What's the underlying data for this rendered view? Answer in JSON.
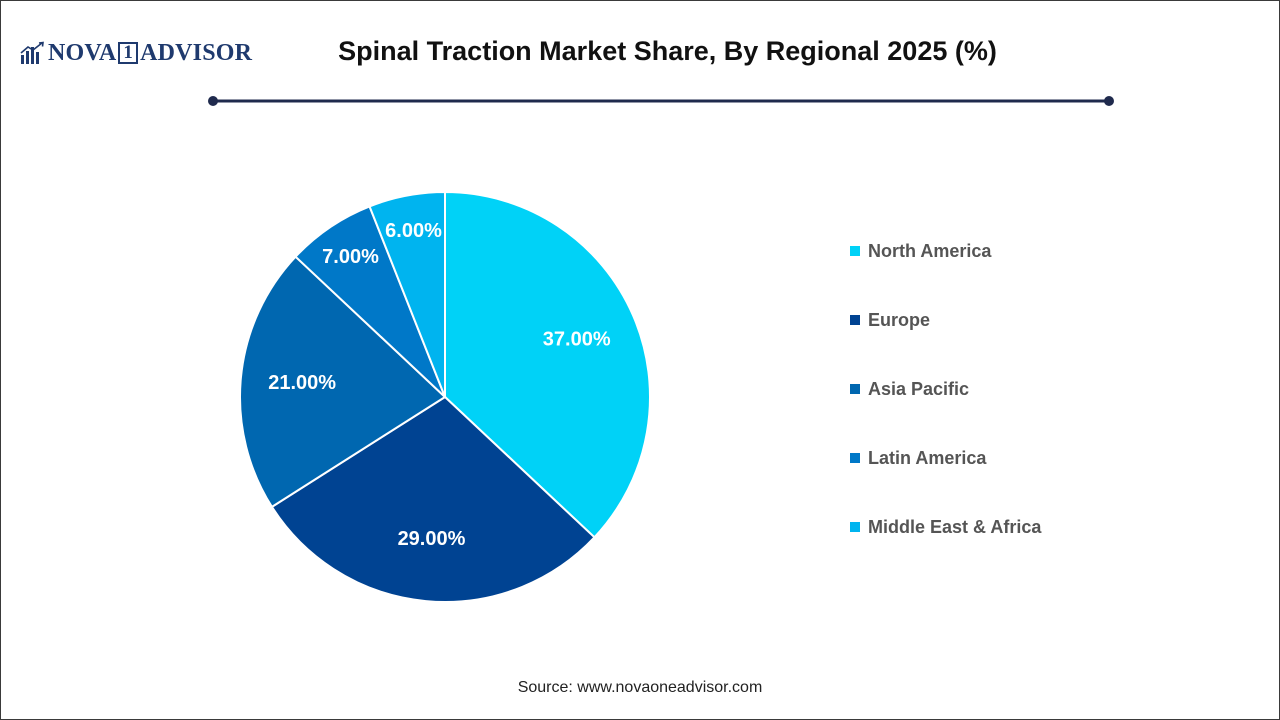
{
  "logo": {
    "part1": "NOVA",
    "box": "1",
    "part2": "ADVISOR",
    "icon": "bar-chart-logo-icon"
  },
  "title": "Spinal Traction Market Share, By Regional 2025 (%)",
  "source": "Source: www.novaoneadvisor.com",
  "colors": {
    "rule": "#1f2a4d",
    "text": "#111111",
    "legend_text": "#555555"
  },
  "chart_data": {
    "type": "pie",
    "title": "Spinal Traction Market Share, By Regional 2025 (%)",
    "categories": [
      "North America",
      "Europe",
      "Asia Pacific",
      "Latin America",
      "Middle East & Africa"
    ],
    "values": [
      37,
      29,
      21,
      7,
      6
    ],
    "labels": [
      "37.00%",
      "29.00%",
      "21.00%",
      "7.00%",
      "6.00%"
    ],
    "colors": [
      "#00d2f7",
      "#004392",
      "#0067b0",
      "#0078c8",
      "#00b4ef"
    ],
    "start_angle_deg": 0,
    "direction": "clockwise",
    "legend_position": "right"
  }
}
